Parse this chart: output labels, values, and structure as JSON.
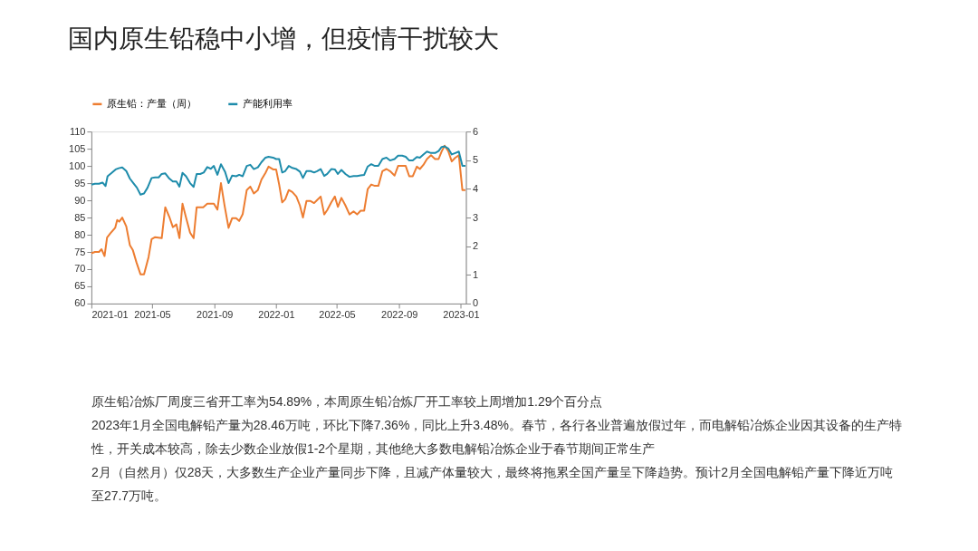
{
  "chart_data": {
    "type": "line",
    "title": "国内原生铅稳中小增，但疫情干扰较大",
    "xlim": [
      "2021-01-01",
      "2023-01-11"
    ],
    "xticks": [
      "2021-01",
      "2021-05",
      "2021-09",
      "2022-01",
      "2022-05",
      "2022-09",
      "2023-01"
    ],
    "ylim": [
      60,
      110
    ],
    "yticks": [
      60,
      65,
      70,
      75,
      80,
      85,
      90,
      95,
      100,
      105,
      110
    ],
    "y2lim": [
      0,
      6
    ],
    "y2ticks": [
      0,
      1,
      2,
      3,
      4,
      5,
      6
    ],
    "grid": false,
    "legend": "top",
    "series": [
      {
        "name": "原生铅：产量（周）",
        "color": "#ed7d31",
        "x": [
          "2021-01-01",
          "2021-01-08",
          "2021-01-16",
          "2021-01-21",
          "2021-01-27",
          "2021-02-01",
          "2021-02-08",
          "2021-02-17",
          "2021-02-21",
          "2021-02-25",
          "2021-03-03",
          "2021-03-11",
          "2021-03-18",
          "2021-03-24",
          "2021-03-31",
          "2021-04-08",
          "2021-04-15",
          "2021-04-24",
          "2021-04-30",
          "2021-05-07",
          "2021-05-20",
          "2021-05-27",
          "2021-06-04",
          "2021-06-11",
          "2021-06-18",
          "2021-06-24",
          "2021-06-30",
          "2021-07-07",
          "2021-07-15",
          "2021-07-22",
          "2021-07-28",
          "2021-08-10",
          "2021-08-18",
          "2021-08-31",
          "2021-09-07",
          "2021-09-14",
          "2021-09-21",
          "2021-09-29",
          "2021-10-06",
          "2021-10-14",
          "2021-10-20",
          "2021-10-27",
          "2021-11-04",
          "2021-11-11",
          "2021-11-18",
          "2021-11-26",
          "2021-12-03",
          "2021-12-11",
          "2021-12-17",
          "2021-12-26",
          "2022-01-01",
          "2022-01-07",
          "2022-01-13",
          "2022-01-19",
          "2022-01-26",
          "2022-02-02",
          "2022-02-10",
          "2022-02-17",
          "2022-02-23",
          "2022-03-02",
          "2022-03-10",
          "2022-03-17",
          "2022-03-23",
          "2022-03-30",
          "2022-04-06",
          "2022-04-12",
          "2022-04-20",
          "2022-04-27",
          "2022-05-03",
          "2022-05-10",
          "2022-05-18",
          "2022-05-26",
          "2022-06-03",
          "2022-06-10",
          "2022-06-17",
          "2022-06-24",
          "2022-07-01",
          "2022-07-08",
          "2022-07-15",
          "2022-07-22",
          "2022-07-30",
          "2022-08-07",
          "2022-08-14",
          "2022-08-23",
          "2022-08-30",
          "2022-09-07",
          "2022-09-14",
          "2022-09-21",
          "2022-09-28",
          "2022-10-06",
          "2022-10-12",
          "2022-10-19",
          "2022-10-26",
          "2022-11-03",
          "2022-11-11",
          "2022-11-18",
          "2022-11-24",
          "2022-11-30",
          "2022-12-07",
          "2022-12-14",
          "2022-12-21",
          "2022-12-28",
          "2023-01-04",
          "2023-01-10"
        ],
        "values": [
          74.6,
          75,
          75,
          75.8,
          73.8,
          79.2,
          80.5,
          82,
          84.3,
          83.8,
          85,
          82.4,
          77,
          75.5,
          72,
          68.5,
          68.5,
          73.5,
          78.7,
          79.3,
          79,
          88,
          85.2,
          82.2,
          83,
          79,
          89,
          85,
          80.6,
          79,
          88,
          88,
          89,
          89,
          87.3,
          95,
          88.6,
          82,
          84.8,
          84.8,
          84,
          86,
          93,
          94,
          92,
          93,
          96,
          98,
          99.8,
          99,
          99,
          94.6,
          89.4,
          90.3,
          93,
          92.4,
          91.1,
          88.5,
          85,
          89.8,
          89.8,
          89.2,
          90.1,
          91.1,
          85.9,
          87.2,
          89.4,
          91.1,
          88.1,
          90.7,
          88.5,
          85.9,
          86.8,
          85.9,
          87,
          87,
          93.3,
          94.6,
          94.2,
          94.2,
          98.5,
          99.1,
          98.5,
          97.2,
          100,
          100,
          100,
          97,
          97,
          99.8,
          99.1,
          100.3,
          102,
          103.1,
          102,
          102,
          104.2,
          105.9,
          104.3,
          101.3,
          102.4,
          103.1,
          93,
          93
        ]
      },
      {
        "name": "产能利用率",
        "color": "#1e8cab",
        "axis": "y2",
        "x": [
          "2021-01-01",
          "2021-01-08",
          "2021-01-16",
          "2021-01-23",
          "2021-01-29",
          "2021-02-02",
          "2021-02-09",
          "2021-02-18",
          "2021-02-24",
          "2021-03-03",
          "2021-03-11",
          "2021-03-18",
          "2021-03-25",
          "2021-04-01",
          "2021-04-08",
          "2021-04-15",
          "2021-04-22",
          "2021-04-30",
          "2021-05-07",
          "2021-05-14",
          "2021-05-20",
          "2021-05-27",
          "2021-06-04",
          "2021-06-11",
          "2021-06-18",
          "2021-06-24",
          "2021-06-30",
          "2021-07-07",
          "2021-07-15",
          "2021-07-22",
          "2021-07-28",
          "2021-08-04",
          "2021-08-11",
          "2021-08-18",
          "2021-08-25",
          "2021-08-31",
          "2021-09-07",
          "2021-09-14",
          "2021-09-22",
          "2021-09-29",
          "2021-10-06",
          "2021-10-14",
          "2021-10-20",
          "2021-10-27",
          "2021-11-04",
          "2021-11-11",
          "2021-11-18",
          "2021-11-26",
          "2021-12-03",
          "2021-12-11",
          "2021-12-17",
          "2021-12-26",
          "2022-01-01",
          "2022-01-07",
          "2022-01-13",
          "2022-01-19",
          "2022-01-26",
          "2022-02-02",
          "2022-02-10",
          "2022-02-17",
          "2022-02-23",
          "2022-03-02",
          "2022-03-10",
          "2022-03-17",
          "2022-03-23",
          "2022-03-30",
          "2022-04-06",
          "2022-04-12",
          "2022-04-20",
          "2022-04-27",
          "2022-05-03",
          "2022-05-10",
          "2022-05-18",
          "2022-05-26",
          "2022-06-03",
          "2022-06-10",
          "2022-06-17",
          "2022-06-24",
          "2022-07-01",
          "2022-07-08",
          "2022-07-15",
          "2022-07-22",
          "2022-07-30",
          "2022-08-07",
          "2022-08-14",
          "2022-08-23",
          "2022-08-30",
          "2022-09-07",
          "2022-09-14",
          "2022-09-21",
          "2022-09-28",
          "2022-10-06",
          "2022-10-12",
          "2022-10-19",
          "2022-10-26",
          "2022-11-03",
          "2022-11-11",
          "2022-11-18",
          "2022-11-24",
          "2022-11-30",
          "2022-12-07",
          "2022-12-14",
          "2022-12-21",
          "2022-12-28",
          "2023-01-04",
          "2023-01-10"
        ],
        "values": [
          4.15,
          4.18,
          4.18,
          4.22,
          4.1,
          4.44,
          4.54,
          4.68,
          4.72,
          4.75,
          4.62,
          4.36,
          4.2,
          4.04,
          3.8,
          3.84,
          4.04,
          4.38,
          4.4,
          4.4,
          4.52,
          4.54,
          4.36,
          4.26,
          4.26,
          4.08,
          4.56,
          4.44,
          4.2,
          4.07,
          4.52,
          4.52,
          4.57,
          4.76,
          4.7,
          4.8,
          4.49,
          4.86,
          4.6,
          4.2,
          4.46,
          4.44,
          4.49,
          4.44,
          4.8,
          4.84,
          4.69,
          4.75,
          4.93,
          5.09,
          5.12,
          5.09,
          5.04,
          5.04,
          4.57,
          4.62,
          4.8,
          4.73,
          4.69,
          4.6,
          4.38,
          4.62,
          4.62,
          4.57,
          4.62,
          4.69,
          4.45,
          4.52,
          4.69,
          4.68,
          4.52,
          4.66,
          4.52,
          4.42,
          4.45,
          4.45,
          4.47,
          4.49,
          4.78,
          4.86,
          4.8,
          4.8,
          5.04,
          5.09,
          4.99,
          5.04,
          5.16,
          5.16,
          5.12,
          4.99,
          4.99,
          5.11,
          5.09,
          5.2,
          5.3,
          5.25,
          5.25,
          5.32,
          5.46,
          5.48,
          5.41,
          5.2,
          5.25,
          5.3,
          4.8,
          4.8
        ]
      }
    ],
    "annotations": [
      "原生铅冶炼厂周度三省开工率为54.89%，本周原生铅冶炼厂开工率较上周增加1.29个百分点",
      "2023年1月全国电解铅产量为28.46万吨，环比下降7.36%，同比上升3.48%。春节，各行各业普遍放假过年，而电解铅冶炼企业因其设备的生产特性，开关成本较高，除去少数企业放假1-2个星期，其他绝大多数电解铅冶炼企业于春节期间正常生产",
      "2月（自然月）仅28天，大多数生产企业产量同步下降，且减产体量较大，最终将拖累全国产量呈下降趋势。预计2月全国电解铅产量下降近万吨至27.7万吨。"
    ]
  }
}
